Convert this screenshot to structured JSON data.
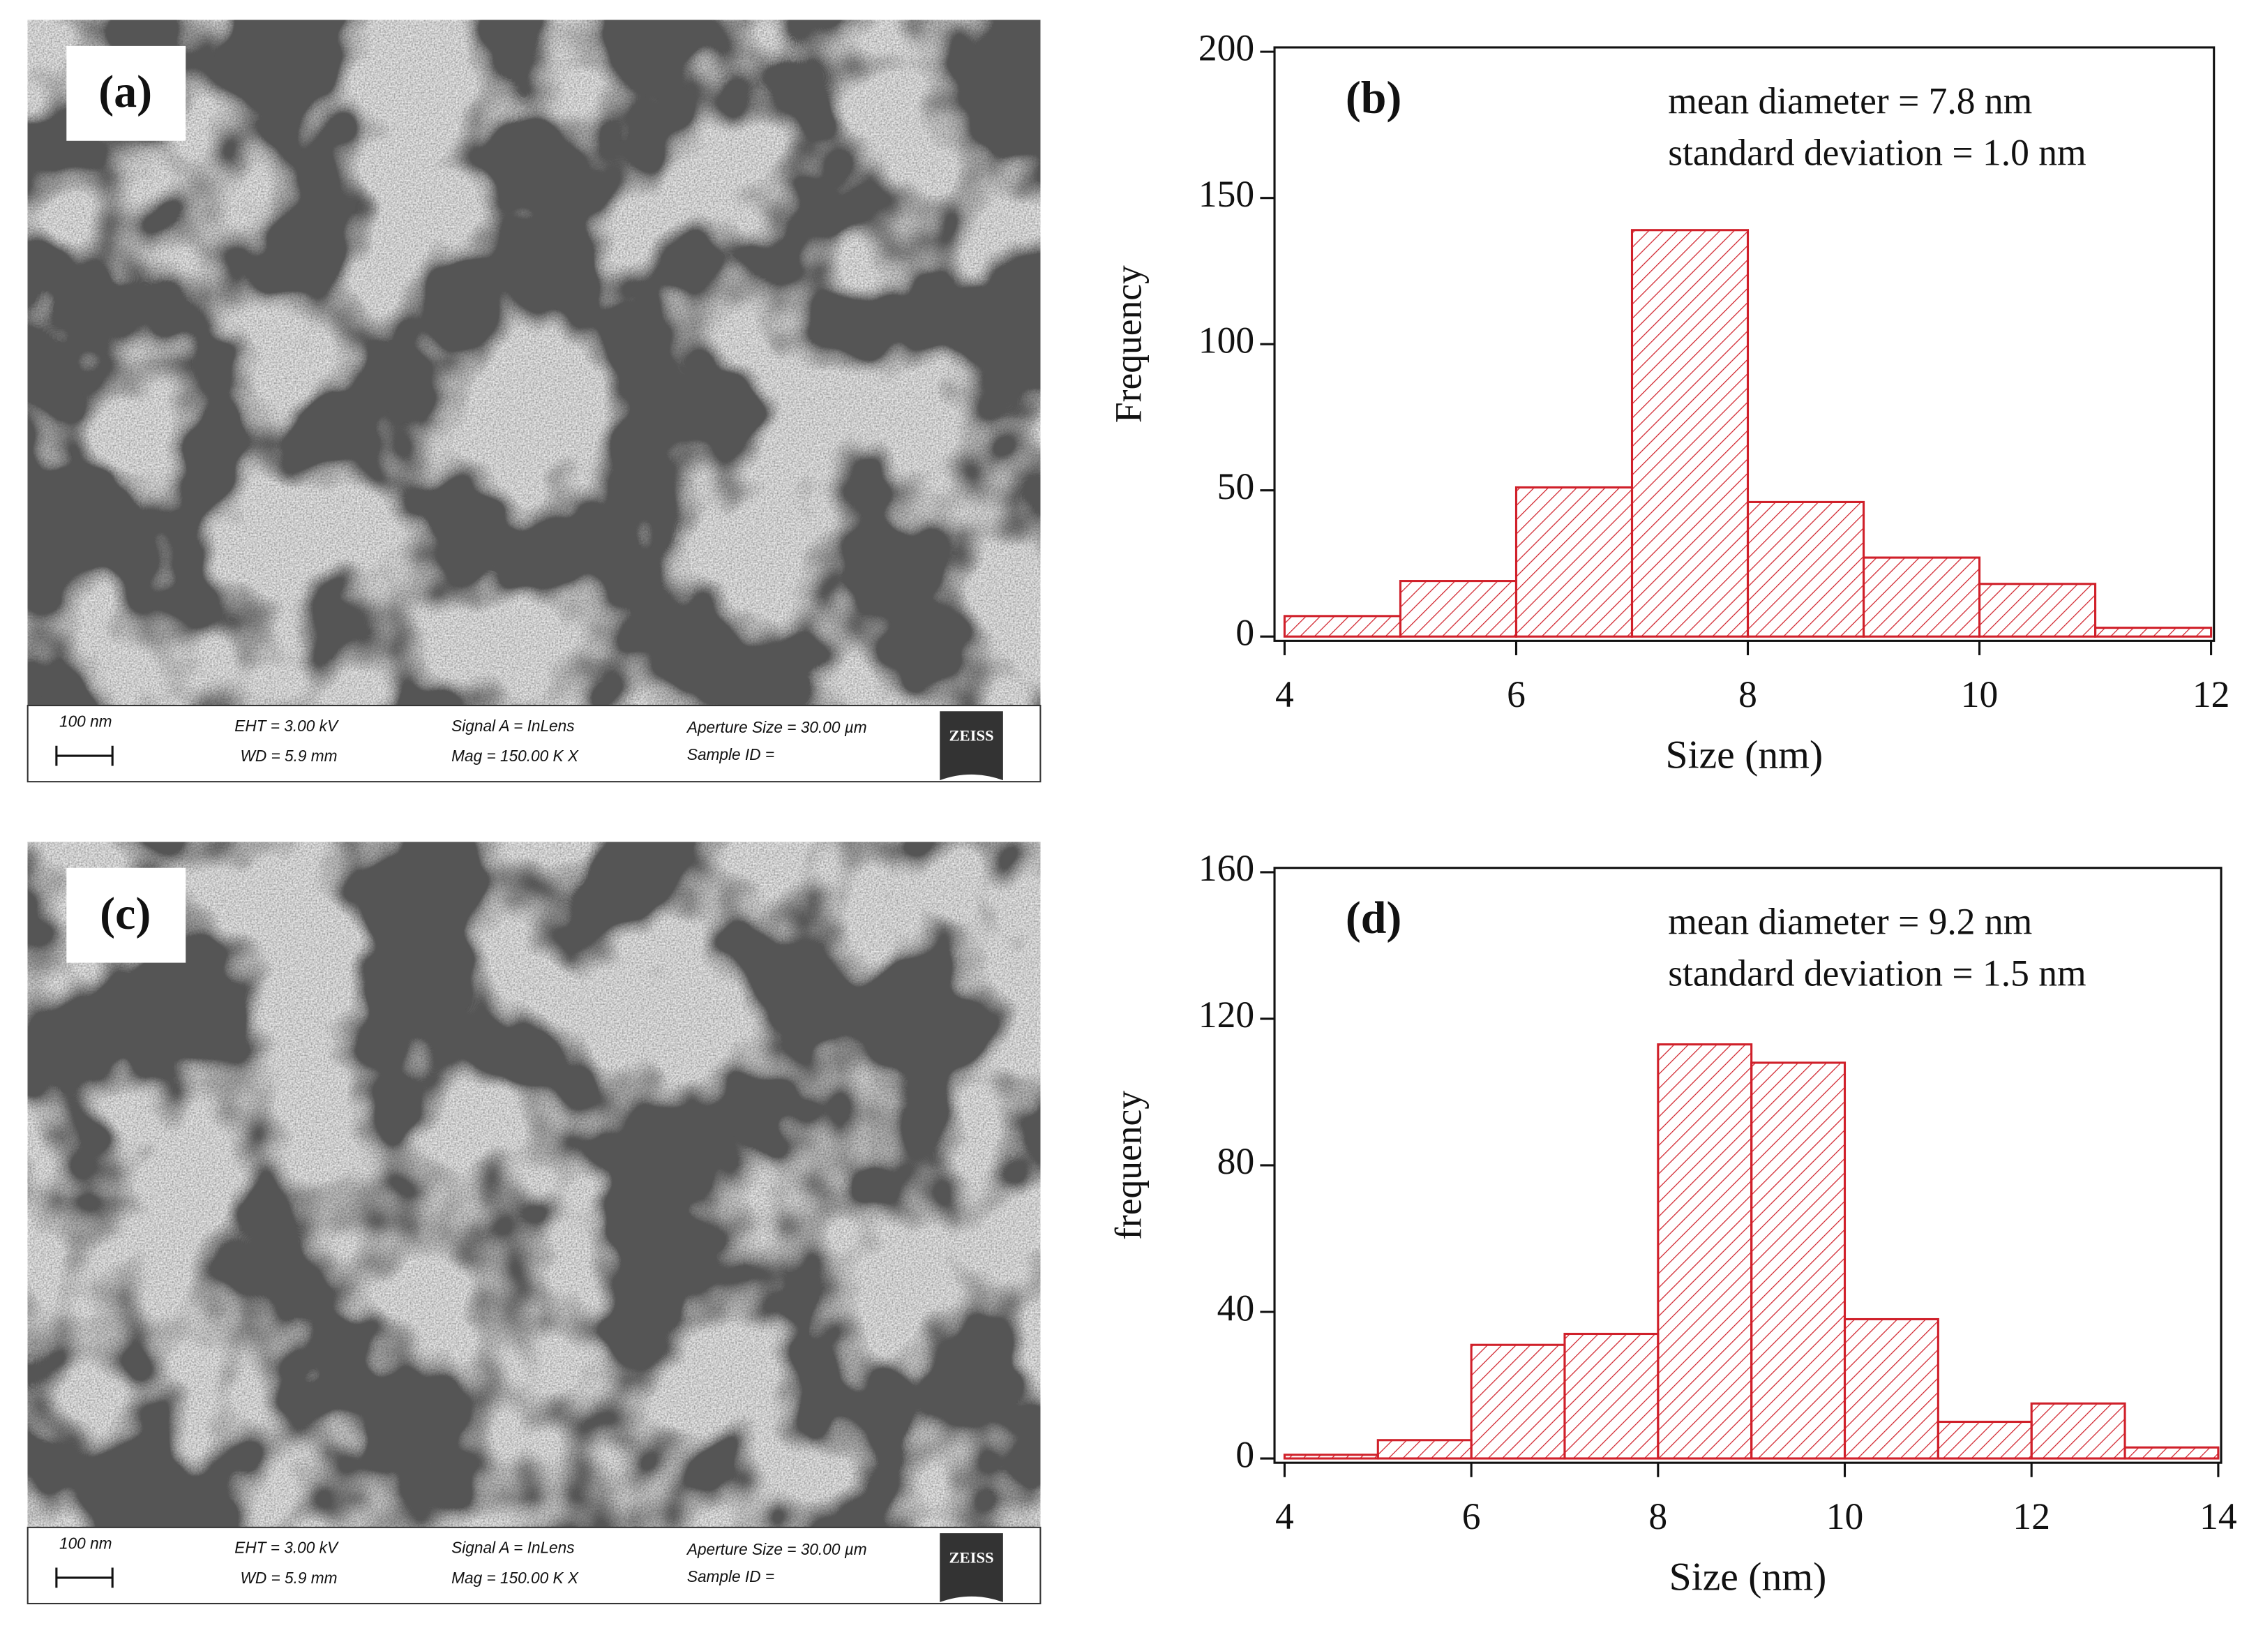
{
  "chart_data": [
    {
      "type": "histogram",
      "label": "(b)",
      "annotations": [
        "mean diameter = 7.8 nm",
        "standard deviation = 1.0 nm"
      ],
      "x_label": "Size (nm)",
      "y_label": "Frequency",
      "bins": [
        4,
        5,
        6,
        7,
        8,
        9,
        10,
        11,
        12
      ],
      "values": [
        7,
        19,
        51,
        139,
        46,
        27,
        18,
        3
      ],
      "color": "#d0202a",
      "xlim": [
        4,
        12
      ],
      "ylim": [
        0,
        200
      ],
      "xticks": [
        4,
        6,
        8,
        10,
        12
      ],
      "yticks": [
        0,
        50,
        100,
        150,
        200
      ]
    },
    {
      "type": "histogram",
      "label": "(d)",
      "annotations": [
        "mean diameter = 9.2 nm",
        "standard deviation = 1.5 nm"
      ],
      "x_label": "Size (nm)",
      "y_label": "frequency",
      "bins": [
        4,
        5,
        6,
        7,
        8,
        9,
        10,
        11,
        12,
        13,
        14
      ],
      "values": [
        1,
        5,
        31,
        34,
        113,
        108,
        38,
        10,
        15,
        3
      ],
      "color": "#d0202a",
      "xlim": [
        4,
        14
      ],
      "ylim": [
        0,
        160
      ],
      "xticks": [
        4,
        6,
        8,
        10,
        12,
        14
      ],
      "yticks": [
        0,
        40,
        80,
        120,
        160
      ]
    }
  ],
  "images": [
    {
      "label": "(a)",
      "scale_bar": "100 nm",
      "info": [
        "EHT = 3.00 kV",
        "WD = 5.9 mm",
        "Signal A = InLens",
        "Mag = 150.00 K X",
        "Aperture Size = 30.00 µm",
        "Sample ID ="
      ],
      "logo": "ZEISS"
    },
    {
      "label": "(c)",
      "scale_bar": "100 nm",
      "info": [
        "EHT = 3.00 kV",
        "WD = 5.9 mm",
        "Signal A = InLens",
        "Mag = 150.00 K X",
        "Aperture Size = 30.00 µm",
        "Sample ID ="
      ],
      "logo": "ZEISS"
    }
  ]
}
